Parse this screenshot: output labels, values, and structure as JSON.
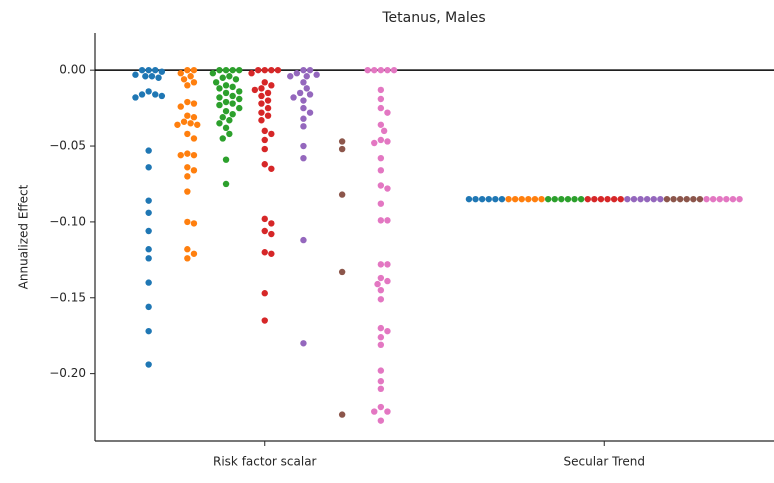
{
  "chart_data": {
    "type": "swarm",
    "title": "Tetanus, Males",
    "ylabel": "Annualized Effect",
    "categories": [
      "Risk factor scalar",
      "Secular Trend"
    ],
    "ylim": [
      -0.2444,
      0.0245
    ],
    "yticks": [
      {
        "value": 0,
        "label": "0.00"
      },
      {
        "value": -0.05,
        "label": "−0.05"
      },
      {
        "value": -0.1,
        "label": "−0.10"
      },
      {
        "value": -0.15,
        "label": "−0.15"
      },
      {
        "value": -0.2,
        "label": "−0.20"
      }
    ],
    "zero_line": true,
    "series": [
      {
        "color": "#1f77b4",
        "values": [
          [
            0,
            0,
            0,
            -0.001,
            -0.003,
            -0.004,
            -0.005,
            -0.004,
            -0.014,
            -0.016,
            -0.017,
            -0.018,
            -0.016,
            -0.053,
            -0.064,
            -0.086,
            -0.094,
            -0.106,
            -0.118,
            -0.124,
            -0.14,
            -0.156,
            -0.172,
            -0.194
          ],
          [
            -0.085,
            -0.085,
            -0.085,
            -0.085,
            -0.085,
            -0.085
          ]
        ]
      },
      {
        "color": "#ff7f0e",
        "values": [
          [
            0,
            0,
            -0.002,
            -0.004,
            -0.006,
            -0.008,
            -0.01,
            -0.021,
            -0.022,
            -0.024,
            -0.03,
            -0.031,
            -0.034,
            -0.035,
            -0.036,
            -0.036,
            -0.042,
            -0.045,
            -0.055,
            -0.056,
            -0.056,
            -0.064,
            -0.066,
            -0.07,
            -0.08,
            -0.1,
            -0.101,
            -0.118,
            -0.121,
            -0.124
          ],
          [
            -0.085,
            -0.085,
            -0.085,
            -0.085,
            -0.085,
            -0.085
          ]
        ]
      },
      {
        "color": "#2ca02c",
        "values": [
          [
            0,
            0,
            0,
            0,
            -0.002,
            -0.004,
            -0.005,
            -0.006,
            -0.008,
            -0.01,
            -0.011,
            -0.012,
            -0.014,
            -0.015,
            -0.017,
            -0.018,
            -0.019,
            -0.021,
            -0.022,
            -0.023,
            -0.025,
            -0.027,
            -0.029,
            -0.031,
            -0.033,
            -0.035,
            -0.038,
            -0.042,
            -0.045,
            -0.059,
            -0.075
          ],
          [
            -0.085,
            -0.085,
            -0.085,
            -0.085,
            -0.085,
            -0.085
          ]
        ]
      },
      {
        "color": "#d62728",
        "values": [
          [
            0,
            0,
            0,
            0,
            -0.002,
            -0.008,
            -0.01,
            -0.012,
            -0.013,
            -0.015,
            -0.017,
            -0.02,
            -0.022,
            -0.025,
            -0.028,
            -0.03,
            -0.033,
            -0.04,
            -0.042,
            -0.046,
            -0.052,
            -0.062,
            -0.065,
            -0.098,
            -0.101,
            -0.106,
            -0.108,
            -0.12,
            -0.121,
            -0.147,
            -0.165
          ],
          [
            -0.085,
            -0.085,
            -0.085,
            -0.085,
            -0.085,
            -0.085
          ]
        ]
      },
      {
        "color": "#9467bd",
        "values": [
          [
            0,
            0,
            -0.002,
            -0.003,
            -0.004,
            -0.004,
            -0.008,
            -0.012,
            -0.015,
            -0.016,
            -0.018,
            -0.02,
            -0.025,
            -0.028,
            -0.032,
            -0.037,
            -0.05,
            -0.058,
            -0.112,
            -0.18
          ],
          [
            -0.085,
            -0.085,
            -0.085,
            -0.085,
            -0.085,
            -0.085
          ]
        ]
      },
      {
        "color": "#8c564b",
        "values": [
          [
            -0.047,
            -0.052,
            -0.082,
            -0.133,
            -0.227
          ],
          [
            -0.085,
            -0.085,
            -0.085,
            -0.085,
            -0.085,
            -0.085
          ]
        ]
      },
      {
        "color": "#e377c2",
        "values": [
          [
            0,
            0,
            0,
            0,
            0,
            -0.013,
            -0.019,
            -0.025,
            -0.028,
            -0.036,
            -0.04,
            -0.046,
            -0.047,
            -0.048,
            -0.058,
            -0.066,
            -0.076,
            -0.078,
            -0.088,
            -0.099,
            -0.099,
            -0.128,
            -0.128,
            -0.137,
            -0.139,
            -0.141,
            -0.145,
            -0.151,
            -0.17,
            -0.172,
            -0.176,
            -0.181,
            -0.198,
            -0.205,
            -0.21,
            -0.222,
            -0.225,
            -0.225,
            -0.231
          ],
          [
            -0.085,
            -0.085,
            -0.085,
            -0.085,
            -0.085,
            -0.085
          ]
        ]
      }
    ]
  }
}
